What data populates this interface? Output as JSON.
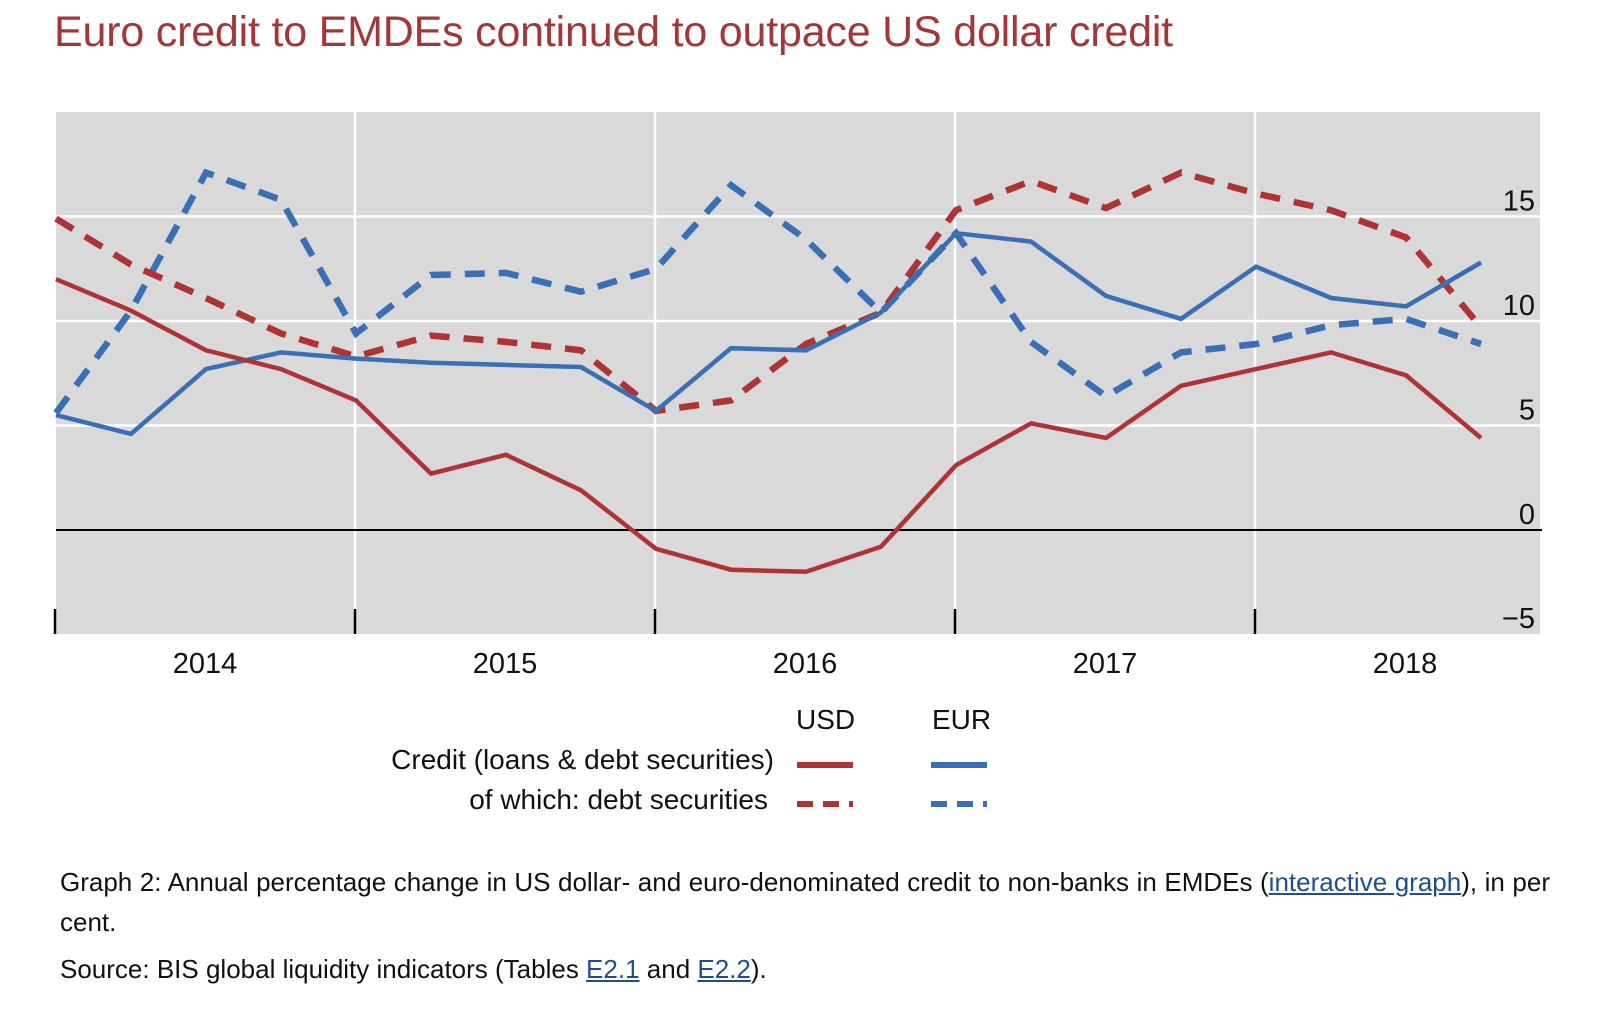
{
  "page": {
    "title": "Euro credit to EMDEs continued to outpace US dollar credit",
    "caption_prefix": "Graph 2: Annual percentage change in US dollar- and euro-denominated credit to non-banks in EMDEs (",
    "caption_link": "interactive graph",
    "caption_suffix": "), in per cent.",
    "source_prefix": "Source: BIS global liquidity indicators (Tables ",
    "source_link1": "E2.1",
    "source_mid": " and ",
    "source_link2": "E2.2",
    "source_suffix": ")."
  },
  "legend": {
    "col_usd": "USD",
    "col_eur": "EUR",
    "row_credit": "Credit (loans & debt securities)",
    "row_debt": "of which: debt securities"
  },
  "colors": {
    "usd": "#b03333",
    "eur": "#3a6fb5",
    "plot_bg": "#d9d9d9",
    "grid": "#ffffff",
    "title": "#a33636"
  },
  "chart_data": {
    "type": "line",
    "title": "Euro credit to EMDEs continued to outpace US dollar credit",
    "xlabel": "",
    "ylabel": "per cent",
    "ylim": [
      -5,
      20
    ],
    "yticks": [
      -5,
      0,
      5,
      10,
      15
    ],
    "ytick_labels": [
      "−5",
      "0",
      "5",
      "10",
      "15"
    ],
    "y_axis_side": "right",
    "grid": true,
    "year_labels": [
      "2014",
      "2015",
      "2016",
      "2017",
      "2018"
    ],
    "x": [
      "2014Q1",
      "2014Q2",
      "2014Q3",
      "2014Q4",
      "2015Q1",
      "2015Q2",
      "2015Q3",
      "2015Q4",
      "2016Q1",
      "2016Q2",
      "2016Q3",
      "2016Q4",
      "2017Q1",
      "2017Q2",
      "2017Q3",
      "2017Q4",
      "2018Q1",
      "2018Q2",
      "2018Q3",
      "2018Q4"
    ],
    "series": [
      {
        "name": "USD Credit (loans & debt securities)",
        "currency": "USD",
        "style": "solid",
        "values": [
          12.0,
          10.5,
          8.6,
          7.7,
          6.2,
          2.7,
          3.6,
          1.9,
          -0.9,
          -1.9,
          -2.0,
          -0.8,
          3.1,
          5.1,
          4.4,
          6.9,
          7.7,
          8.5,
          7.4,
          4.4
        ]
      },
      {
        "name": "EUR Credit (loans & debt securities)",
        "currency": "EUR",
        "style": "solid",
        "values": [
          5.5,
          4.6,
          7.7,
          8.5,
          8.2,
          8.0,
          7.9,
          7.8,
          5.7,
          8.7,
          8.6,
          10.4,
          14.2,
          13.8,
          11.2,
          10.1,
          12.6,
          11.1,
          10.7,
          12.8
        ]
      },
      {
        "name": "USD of which: debt securities",
        "currency": "USD",
        "style": "dashed",
        "values": [
          14.9,
          12.7,
          11.1,
          9.4,
          8.3,
          9.3,
          9.0,
          8.6,
          5.7,
          6.2,
          8.9,
          10.4,
          15.3,
          16.7,
          15.4,
          17.1,
          16.1,
          15.3,
          14.0,
          9.7
        ]
      },
      {
        "name": "EUR of which: debt securities",
        "currency": "EUR",
        "style": "dashed",
        "values": [
          5.6,
          10.5,
          17.1,
          15.8,
          9.4,
          12.2,
          12.3,
          11.4,
          12.5,
          16.5,
          13.9,
          10.4,
          14.2,
          9.0,
          6.4,
          8.5,
          8.9,
          9.8,
          10.1,
          8.9
        ]
      }
    ],
    "legend_position": "bottom-center"
  }
}
